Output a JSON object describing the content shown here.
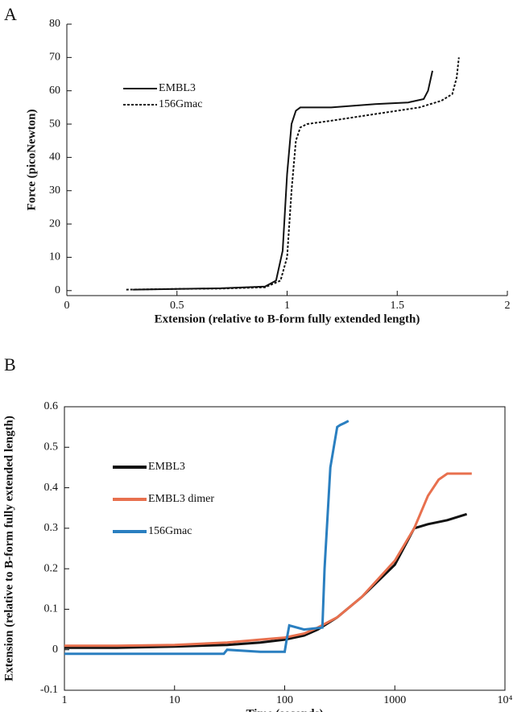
{
  "chart_data": [
    {
      "type": "line",
      "panel_label": "A",
      "x_label": "Extension (relative to B-form fully extended length)",
      "y_label": "Force (picoNewton)",
      "xlim": [
        0,
        2
      ],
      "ylim": [
        -1.5,
        80
      ],
      "xticks": [
        0,
        0.5,
        1,
        1.5,
        2
      ],
      "yticks": [
        0,
        10,
        20,
        30,
        40,
        50,
        60,
        70,
        80
      ],
      "box": false,
      "legend": "upper left",
      "legend_colored_text": false,
      "series": [
        {
          "name": "EMBL3",
          "color": "#111111",
          "linestyle": "solid",
          "x": [
            0.3,
            0.5,
            0.7,
            0.9,
            0.95,
            0.98,
            1.0,
            1.02,
            1.04,
            1.06,
            1.2,
            1.4,
            1.55,
            1.62,
            1.64,
            1.66
          ],
          "values": [
            0.3,
            0.5,
            0.7,
            1.2,
            3,
            12,
            35,
            50,
            54,
            55,
            55,
            56,
            56.5,
            57.5,
            60,
            66
          ]
        },
        {
          "name": "156Gmac",
          "color": "#111111",
          "linestyle": "dotted",
          "x": [
            0.27,
            0.5,
            0.7,
            0.9,
            0.97,
            1.0,
            1.02,
            1.04,
            1.06,
            1.09,
            1.2,
            1.4,
            1.6,
            1.7,
            1.75,
            1.77,
            1.78
          ],
          "values": [
            0.3,
            0.5,
            0.6,
            1,
            3,
            10,
            30,
            45,
            49,
            50,
            51,
            53,
            55,
            57,
            59,
            64,
            70
          ]
        }
      ]
    },
    {
      "type": "line",
      "panel_label": "B",
      "x_label": "Time (seconds)",
      "y_label": "Extension (relative to B-form fully extended length)",
      "xlim": [
        1,
        10000
      ],
      "ylim": [
        -0.1,
        0.6
      ],
      "log_x": true,
      "xticks": [
        1,
        10,
        100,
        1000,
        {
          "value": 10000,
          "label": "10⁴"
        }
      ],
      "yticks": [
        -0.1,
        0,
        0.1,
        0.2,
        0.3,
        0.4,
        0.5,
        0.6
      ],
      "box": true,
      "legend": "upper left",
      "legend_colored_text": true,
      "series": [
        {
          "name": "EMBL3",
          "color": "#111111",
          "linestyle": "solid",
          "x": [
            1,
            3,
            10,
            30,
            60,
            100,
            150,
            200,
            300,
            500,
            1000,
            1500,
            2000,
            3000,
            4500
          ],
          "values": [
            0.005,
            0.005,
            0.008,
            0.012,
            0.018,
            0.025,
            0.035,
            0.05,
            0.08,
            0.13,
            0.21,
            0.3,
            0.31,
            0.32,
            0.335
          ]
        },
        {
          "name": "EMBL3 dimer",
          "color": "#e8704e",
          "linestyle": "solid",
          "x": [
            1,
            3,
            10,
            30,
            60,
            100,
            150,
            200,
            300,
            500,
            1000,
            1500,
            2000,
            2500,
            3000,
            5000
          ],
          "values": [
            0.01,
            0.01,
            0.012,
            0.018,
            0.025,
            0.03,
            0.04,
            0.055,
            0.08,
            0.13,
            0.22,
            0.3,
            0.38,
            0.42,
            0.435,
            0.435
          ]
        },
        {
          "name": "156Gmac",
          "color": "#2a7fc0",
          "linestyle": "solid",
          "x": [
            1,
            10,
            28,
            30,
            60,
            100,
            105,
            110,
            150,
            220,
            230,
            260,
            300,
            320,
            350,
            380
          ],
          "values": [
            -0.01,
            -0.01,
            -0.01,
            0.0,
            -0.005,
            -0.005,
            0.03,
            0.06,
            0.05,
            0.055,
            0.2,
            0.45,
            0.55,
            0.555,
            0.56,
            0.565
          ]
        }
      ]
    }
  ]
}
